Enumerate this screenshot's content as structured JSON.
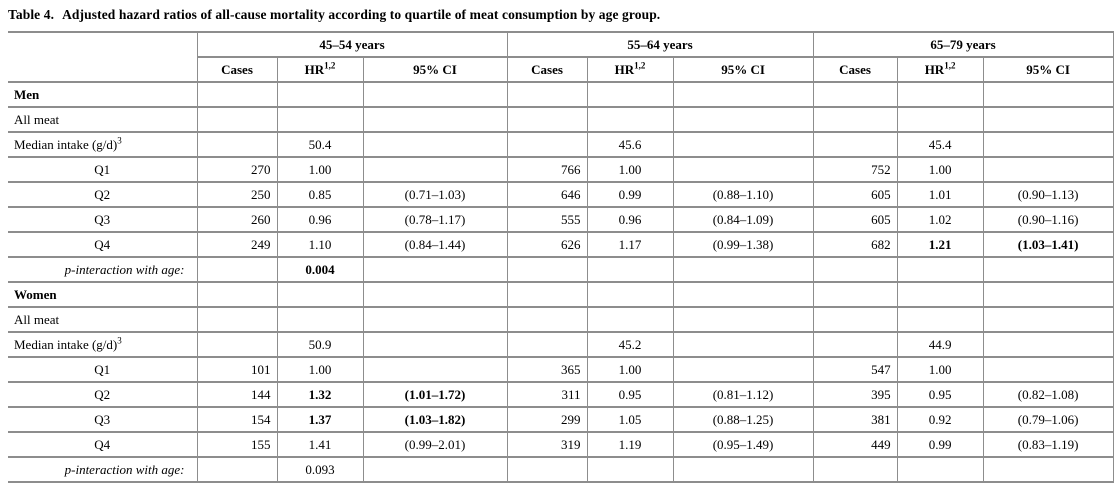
{
  "page": {
    "title_label": "Table 4.",
    "title_text": "Adjusted hazard ratios of all-cause mortality according to quartile of meat consumption by age group."
  },
  "table": {
    "age_groups": [
      "45–54 years",
      "55–64 years",
      "65–79 years"
    ],
    "sub_headers": {
      "cases": "Cases",
      "hr": "HR",
      "hr_sup": "1,2",
      "ci": "95% CI"
    },
    "rows": [
      {
        "label": "Men",
        "type": "section",
        "cells": [
          "",
          "",
          "",
          "",
          "",
          "",
          "",
          "",
          ""
        ]
      },
      {
        "label": "All meat",
        "type": "sub",
        "cells": [
          "",
          "",
          "",
          "",
          "",
          "",
          "",
          "",
          ""
        ]
      },
      {
        "label": "Median intake (g/d)",
        "label_sup": "3",
        "type": "sub",
        "cells": [
          "",
          "50.4",
          "",
          "",
          "45.6",
          "",
          "",
          "45.4",
          ""
        ]
      },
      {
        "label": "Q1",
        "type": "quartile",
        "cells": [
          "270",
          "1.00",
          "",
          "766",
          "1.00",
          "",
          "752",
          "1.00",
          ""
        ]
      },
      {
        "label": "Q2",
        "type": "quartile",
        "cells": [
          "250",
          "0.85",
          "(0.71–1.03)",
          "646",
          "0.99",
          "(0.88–1.10)",
          "605",
          "1.01",
          "(0.90–1.13)"
        ]
      },
      {
        "label": "Q3",
        "type": "quartile",
        "cells": [
          "260",
          "0.96",
          "(0.78–1.17)",
          "555",
          "0.96",
          "(0.84–1.09)",
          "605",
          "1.02",
          "(0.90–1.16)"
        ]
      },
      {
        "label": "Q4",
        "type": "quartile",
        "cells": [
          "249",
          "1.10",
          "(0.84–1.44)",
          "626",
          "1.17",
          "(0.99–1.38)",
          "682",
          "1.21",
          "(1.03–1.41)"
        ],
        "bold_cells": [
          7,
          8
        ]
      },
      {
        "label": "p-interaction with age:",
        "type": "pint",
        "cells": [
          "",
          "0.004",
          "",
          "",
          "",
          "",
          "",
          "",
          ""
        ],
        "bold_cells": [
          1
        ]
      },
      {
        "label": "Women",
        "type": "section",
        "cells": [
          "",
          "",
          "",
          "",
          "",
          "",
          "",
          "",
          ""
        ]
      },
      {
        "label": "All meat",
        "type": "sub",
        "cells": [
          "",
          "",
          "",
          "",
          "",
          "",
          "",
          "",
          ""
        ]
      },
      {
        "label": "Median intake (g/d)",
        "label_sup": "3",
        "type": "sub",
        "cells": [
          "",
          "50.9",
          "",
          "",
          "45.2",
          "",
          "",
          "44.9",
          ""
        ]
      },
      {
        "label": "Q1",
        "type": "quartile",
        "cells": [
          "101",
          "1.00",
          "",
          "365",
          "1.00",
          "",
          "547",
          "1.00",
          ""
        ]
      },
      {
        "label": "Q2",
        "type": "quartile",
        "cells": [
          "144",
          "1.32",
          "(1.01–1.72)",
          "311",
          "0.95",
          "(0.81–1.12)",
          "395",
          "0.95",
          "(0.82–1.08)"
        ],
        "bold_cells": [
          1,
          2
        ]
      },
      {
        "label": "Q3",
        "type": "quartile",
        "cells": [
          "154",
          "1.37",
          "(1.03–1.82)",
          "299",
          "1.05",
          "(0.88–1.25)",
          "381",
          "0.92",
          "(0.79–1.06)"
        ],
        "bold_cells": [
          1,
          2
        ]
      },
      {
        "label": "Q4",
        "type": "quartile",
        "cells": [
          "155",
          "1.41",
          "(0.99–2.01)",
          "319",
          "1.19",
          "(0.95–1.49)",
          "449",
          "0.99",
          "(0.83–1.19)"
        ]
      },
      {
        "label": "p-interaction with age:",
        "type": "pint",
        "cells": [
          "",
          "0.093",
          "",
          "",
          "",
          "",
          "",
          "",
          ""
        ]
      }
    ]
  }
}
